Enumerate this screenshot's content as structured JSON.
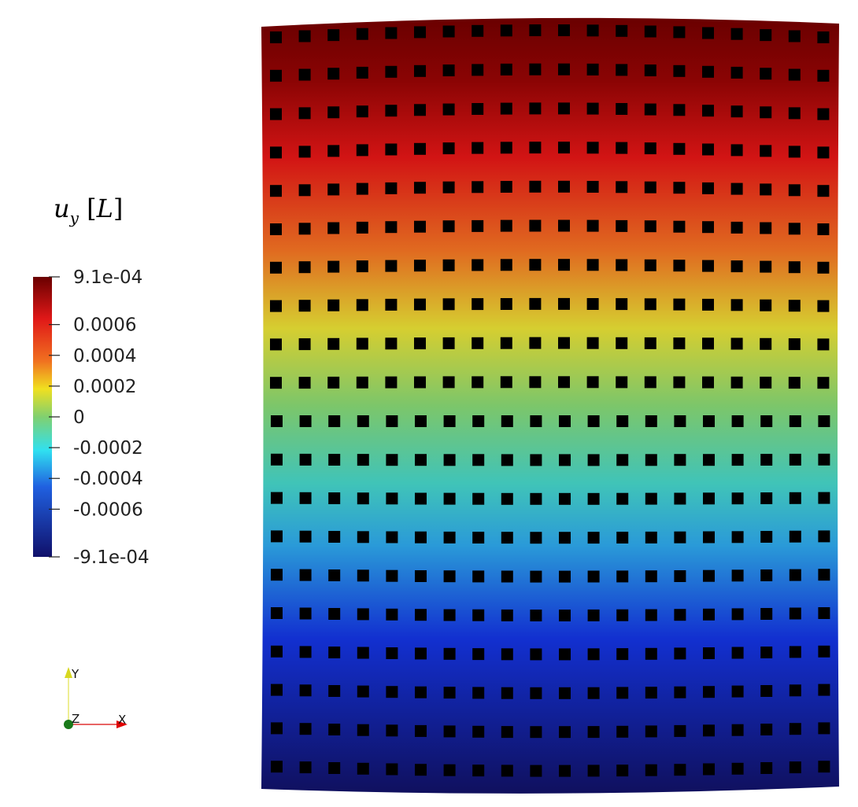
{
  "legend": {
    "title_symbol": "u",
    "title_subscript": "y",
    "title_unit": "L",
    "range": [
      -0.00091,
      0.00091
    ],
    "ticks": [
      {
        "value": 0.00091,
        "label": "9.1e-04"
      },
      {
        "value": 0.0006,
        "label": "0.0006"
      },
      {
        "value": 0.0004,
        "label": "0.0004"
      },
      {
        "value": 0.0002,
        "label": "0.0002"
      },
      {
        "value": 0,
        "label": "0"
      },
      {
        "value": -0.0002,
        "label": "-0.0002"
      },
      {
        "value": -0.0004,
        "label": "-0.0004"
      },
      {
        "value": -0.0006,
        "label": "-0.0006"
      },
      {
        "value": -0.00091,
        "label": "-9.1e-04"
      }
    ]
  },
  "axes": {
    "x": "X",
    "y": "Y",
    "z": "Z"
  },
  "mesh": {
    "rows": 20,
    "cols": 20
  },
  "colors": {
    "y_axis": "#e8e800",
    "x_axis": "#e00000",
    "z_axis": "#1a7a1a",
    "holes": "#000000"
  }
}
